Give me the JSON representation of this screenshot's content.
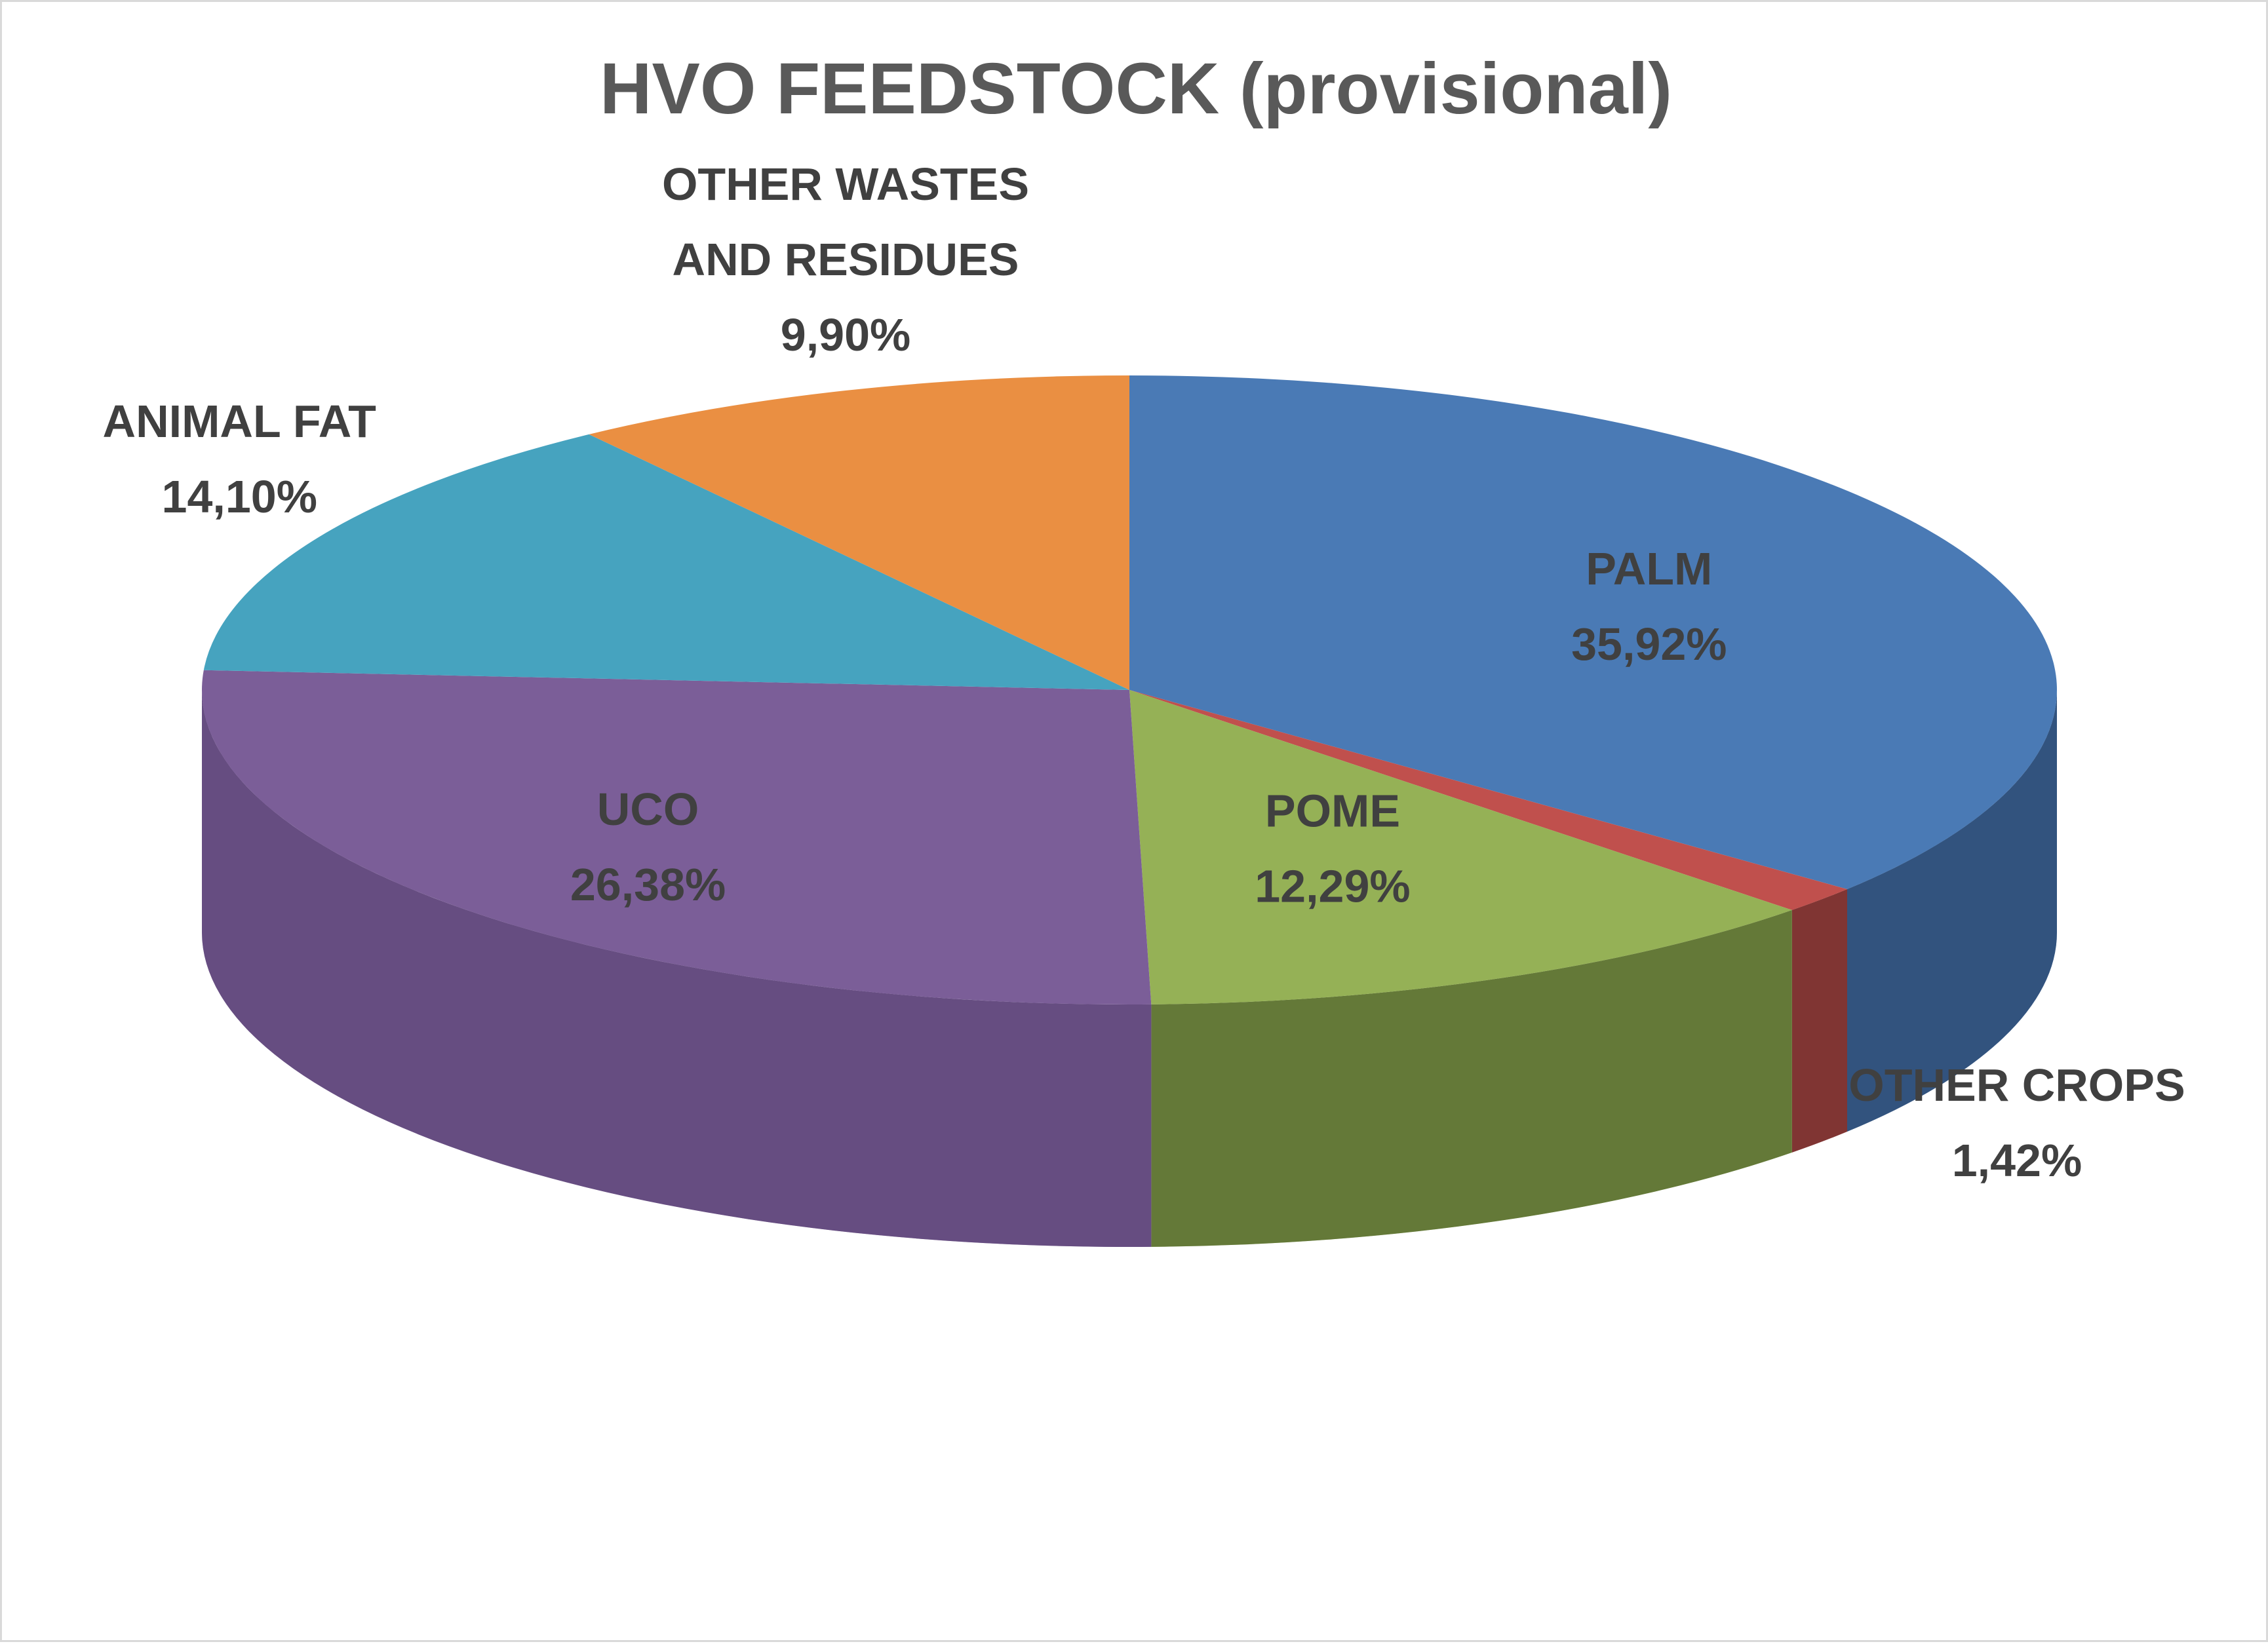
{
  "chart_data": {
    "type": "pie",
    "style": "3d-pie",
    "title": "HVO FEEDSTOCK (provisional)",
    "slices": [
      {
        "name": "PALM",
        "value": 35.92,
        "value_label": "35,92%",
        "color": "#4a7ab5",
        "side_color": "#1f3350"
      },
      {
        "name": "OTHER CROPS",
        "value": 1.42,
        "value_label": "1,42%",
        "color": "#c0504d",
        "side_color": "#4a1f1f"
      },
      {
        "name": "POME",
        "value": 12.29,
        "value_label": "12,29%",
        "color": "#95b156",
        "side_color": "#3d4a20"
      },
      {
        "name": "UCO",
        "value": 26.38,
        "value_label": "26,38%",
        "color": "#7b5e98",
        "side_color": "#563f70"
      },
      {
        "name": "ANIMAL FAT",
        "value": 14.1,
        "value_label": "14,10%",
        "color": "#46a3bf",
        "side_color": "#2c6b7d"
      },
      {
        "name": "OTHER WASTES AND RESIDUES",
        "value": 9.9,
        "value_label": "9,90%",
        "color": "#ea8f42",
        "side_color": "#9a5a25"
      }
    ],
    "slice_labels": [
      [
        "PALM",
        "35,92%"
      ],
      [
        "OTHER CROPS",
        "1,42%"
      ],
      [
        "POME",
        "12,29%"
      ],
      [
        "UCO",
        "26,38%"
      ],
      [
        "ANIMAL FAT",
        "14,10%"
      ],
      [
        "OTHER WASTES",
        "AND RESIDUES",
        "9,90%"
      ]
    ],
    "legend": "none",
    "data_labels": "category name and percentage"
  }
}
